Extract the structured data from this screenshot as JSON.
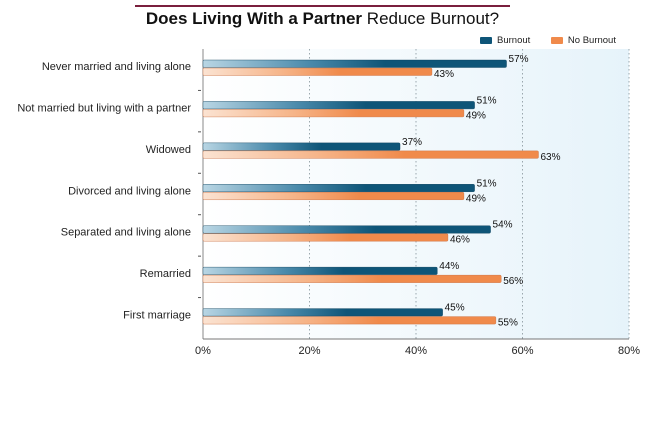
{
  "title": {
    "bold": "Does Living With a Partner",
    "rest": " Reduce Burnout?"
  },
  "legend": [
    {
      "name": "Burnout",
      "color": "#0e5578"
    },
    {
      "name": "No Burnout",
      "color": "#f08a4b"
    }
  ],
  "chart_data": {
    "type": "bar",
    "orientation": "horizontal",
    "categories": [
      "Never married and living alone",
      "Not married but living with a partner",
      "Widowed",
      "Divorced and living alone",
      "Separated and living alone",
      "Remarried",
      "First marriage"
    ],
    "series": [
      {
        "name": "Burnout",
        "values": [
          57,
          51,
          37,
          51,
          54,
          44,
          45
        ],
        "labels": [
          "57%",
          "51%",
          "37%",
          "51%",
          "54%",
          "44%",
          "45%"
        ]
      },
      {
        "name": "No Burnout",
        "values": [
          43,
          49,
          63,
          49,
          46,
          56,
          55
        ],
        "labels": [
          "43%",
          "49%",
          "63%",
          "49%",
          "46%",
          "56%",
          "55%"
        ]
      }
    ],
    "xlim": [
      0,
      80
    ],
    "xticks": [
      0,
      20,
      40,
      60,
      80
    ],
    "xtick_labels": [
      "0%",
      "20%",
      "40%",
      "60%",
      "80%"
    ],
    "grid": "vertical dotted",
    "legend_position": "top-right"
  }
}
